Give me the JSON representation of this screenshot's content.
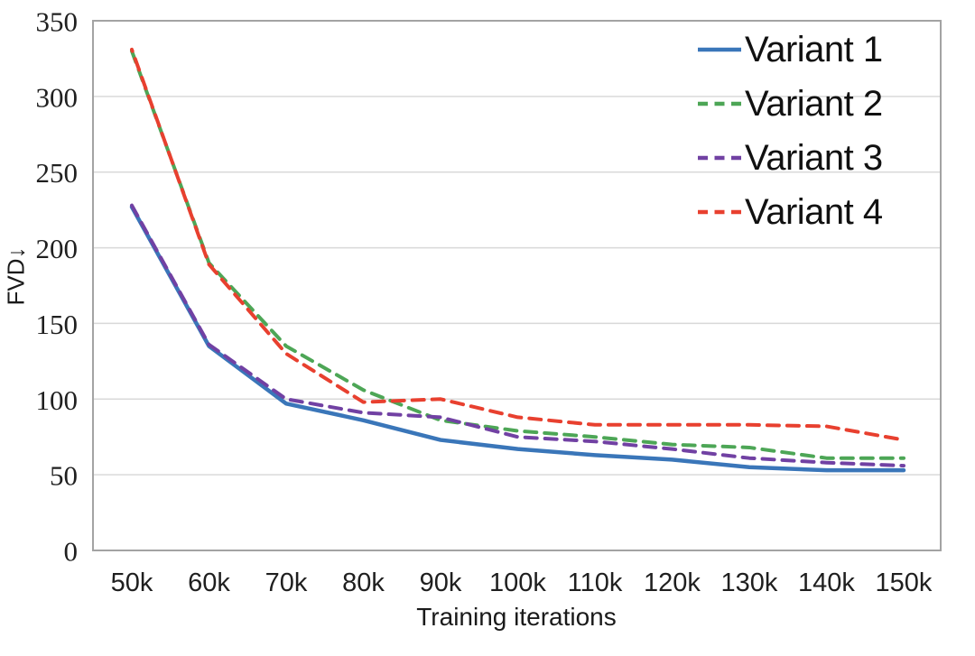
{
  "chart_data": {
    "type": "line",
    "title": "",
    "xlabel": "Training iterations",
    "ylabel": "FVD↓",
    "categories": [
      "50k",
      "60k",
      "70k",
      "80k",
      "90k",
      "100k",
      "110k",
      "120k",
      "130k",
      "140k",
      "150k"
    ],
    "y_ticks": [
      0,
      50,
      100,
      150,
      200,
      250,
      300,
      350
    ],
    "ylim": [
      0,
      350
    ],
    "grid": "horizontal-only",
    "legend_position": "inside-top-right",
    "series": [
      {
        "name": "Variant 1",
        "style": "solid",
        "color": "#3A76B9",
        "values": [
          227,
          135,
          97,
          86,
          73,
          67,
          63,
          60,
          55,
          53,
          53
        ]
      },
      {
        "name": "Variant 2",
        "style": "dashed",
        "color": "#4DA656",
        "values": [
          330,
          190,
          135,
          106,
          86,
          79,
          75,
          70,
          68,
          61,
          61
        ]
      },
      {
        "name": "Variant 3",
        "style": "dashed",
        "color": "#7141A3",
        "values": [
          228,
          136,
          100,
          91,
          88,
          75,
          72,
          67,
          61,
          58,
          56
        ]
      },
      {
        "name": "Variant 4",
        "style": "dashed",
        "color": "#E8402F",
        "values": [
          331,
          189,
          130,
          98,
          100,
          88,
          83,
          83,
          83,
          82,
          73
        ]
      }
    ]
  },
  "colors": {
    "gridline": "#D9D9D9",
    "plot_border": "#A3A3A3",
    "axis_text": "#1F1F1F"
  }
}
